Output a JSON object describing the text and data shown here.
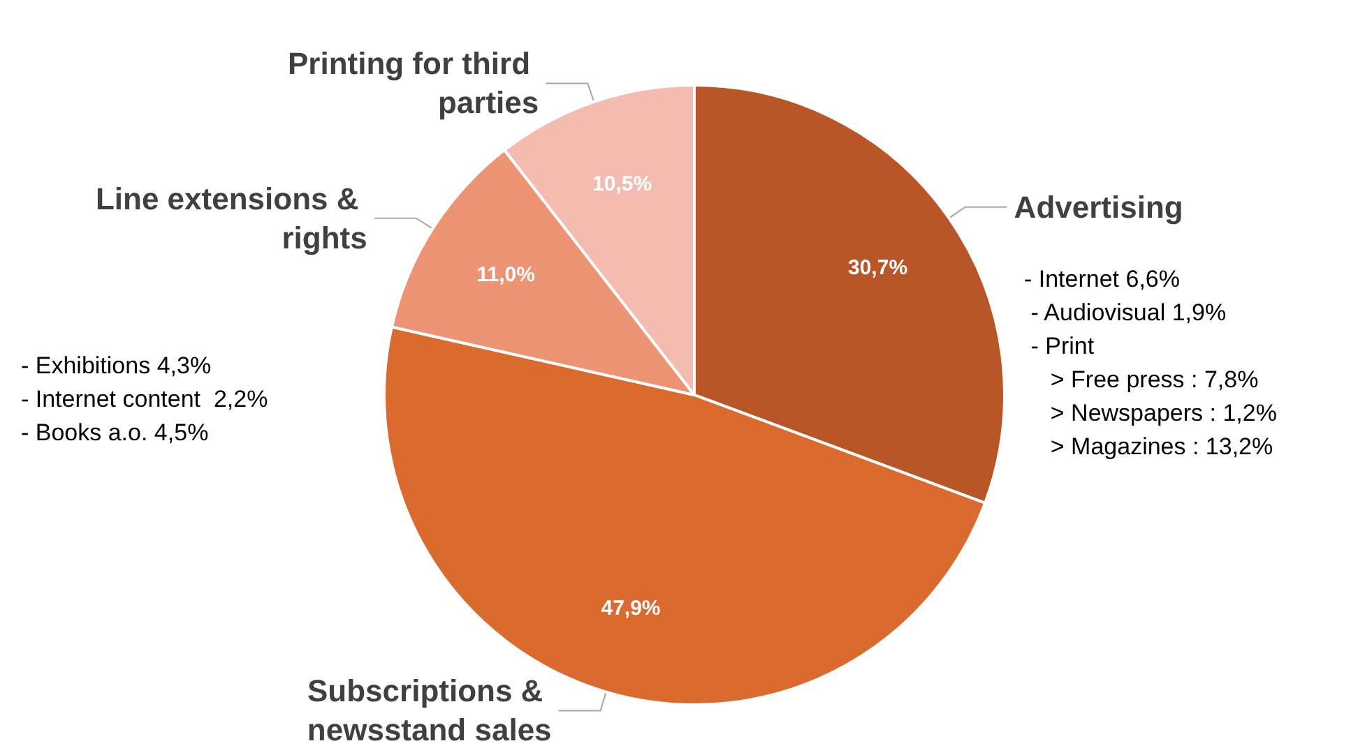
{
  "chart_data": {
    "type": "pie",
    "categories": [
      "Advertising",
      "Subscriptions & newsstand sales",
      "Line extensions & rights",
      "Printing for third parties"
    ],
    "values": [
      30.7,
      47.9,
      11.0,
      10.5
    ],
    "value_labels": [
      "30,7%",
      "47,9%",
      "11,0%",
      "10,5%"
    ],
    "colors": [
      "#b85627",
      "#da6a2e",
      "#ec9474",
      "#f4bcb0"
    ],
    "legend": false,
    "annotations": [
      "- Internet 6,6%\n - Audiovisual 1,9%\n - Print\n    > Free press : 7,8%\n    > Newspapers : 1,2%\n    > Magazines : 13,2%",
      "- Exhibitions 4,3%\n- Internet content  2,2%\n- Books a.o. 4,5%"
    ]
  }
}
